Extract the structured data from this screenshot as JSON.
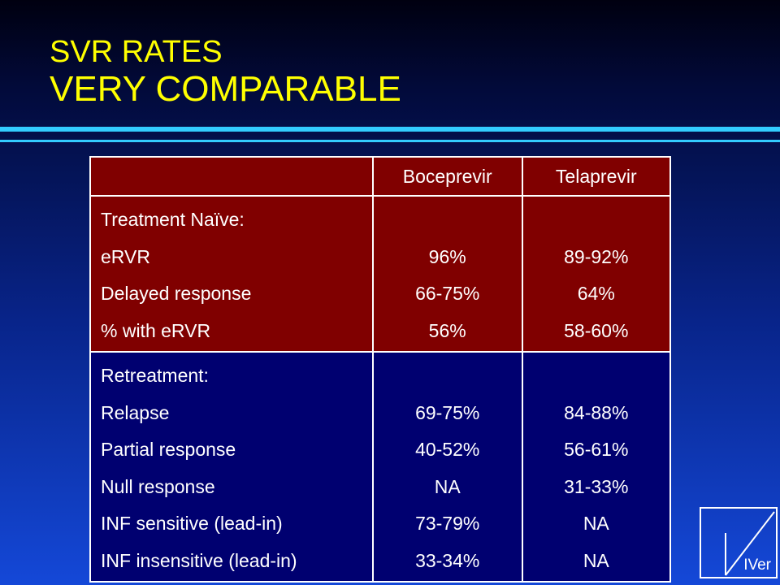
{
  "title": {
    "line1": "SVR RATES",
    "line2": "VERY COMPARABLE"
  },
  "table": {
    "headers": [
      "",
      "Boceprevir",
      "Telaprevir"
    ],
    "sections": [
      {
        "style": "red",
        "rows": [
          {
            "label": "Treatment Naïve:",
            "boceprevir": "",
            "telaprevir": ""
          },
          {
            "label": "eRVR",
            "boceprevir": "96%",
            "telaprevir": "89-92%"
          },
          {
            "label": "Delayed response",
            "boceprevir": "66-75%",
            "telaprevir": "64%"
          },
          {
            "label": "% with eRVR",
            "boceprevir": "56%",
            "telaprevir": "58-60%"
          }
        ]
      },
      {
        "style": "navy",
        "rows": [
          {
            "label": "Retreatment:",
            "boceprevir": "",
            "telaprevir": ""
          },
          {
            "label": "Relapse",
            "boceprevir": "69-75%",
            "telaprevir": "84-88%"
          },
          {
            "label": "Partial response",
            "boceprevir": "40-52%",
            "telaprevir": "56-61%"
          },
          {
            "label": "Null response",
            "boceprevir": "NA",
            "telaprevir": "31-33%"
          },
          {
            "label": "INF sensitive (lead-in)",
            "boceprevir": "73-79%",
            "telaprevir": "NA"
          },
          {
            "label": "INF insensitive (lead-in)",
            "boceprevir": "33-34%",
            "telaprevir": "NA"
          }
        ]
      }
    ]
  },
  "logo": {
    "text": "IVer"
  },
  "colors": {
    "title": "#ffff00",
    "rule": "#33ccff",
    "header_fill": "#800000",
    "retreatment_fill": "#000070",
    "text": "#ffffff"
  }
}
